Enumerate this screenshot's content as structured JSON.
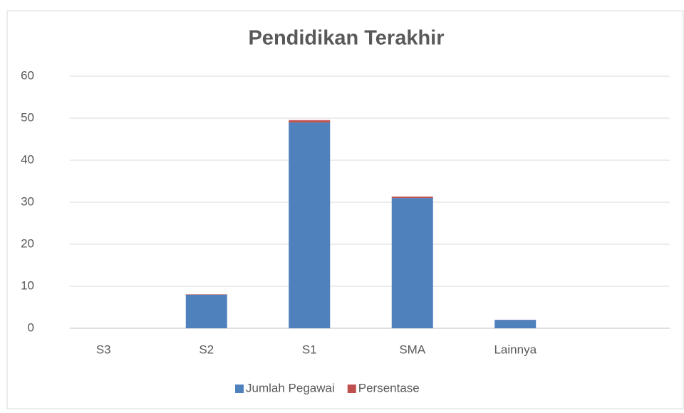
{
  "chart_data": {
    "type": "stacked_bar",
    "title": "Pendidikan Terakhir",
    "categories": [
      "S3",
      "S2",
      "S1",
      "SMA",
      "Lainnya",
      null
    ],
    "series": [
      {
        "name": "Jumlah Pegawai",
        "color": "#4f81bd",
        "values": [
          0,
          8,
          49,
          31,
          2,
          null
        ]
      },
      {
        "name": "Persentase",
        "color": "#c0504d",
        "values": [
          0,
          0.09,
          0.54,
          0.34,
          0.02,
          null
        ]
      }
    ],
    "ylim": [
      0,
      60
    ],
    "yticks": [
      0,
      10,
      20,
      30,
      40,
      50,
      60
    ],
    "grid": true,
    "legend": "bottom"
  }
}
